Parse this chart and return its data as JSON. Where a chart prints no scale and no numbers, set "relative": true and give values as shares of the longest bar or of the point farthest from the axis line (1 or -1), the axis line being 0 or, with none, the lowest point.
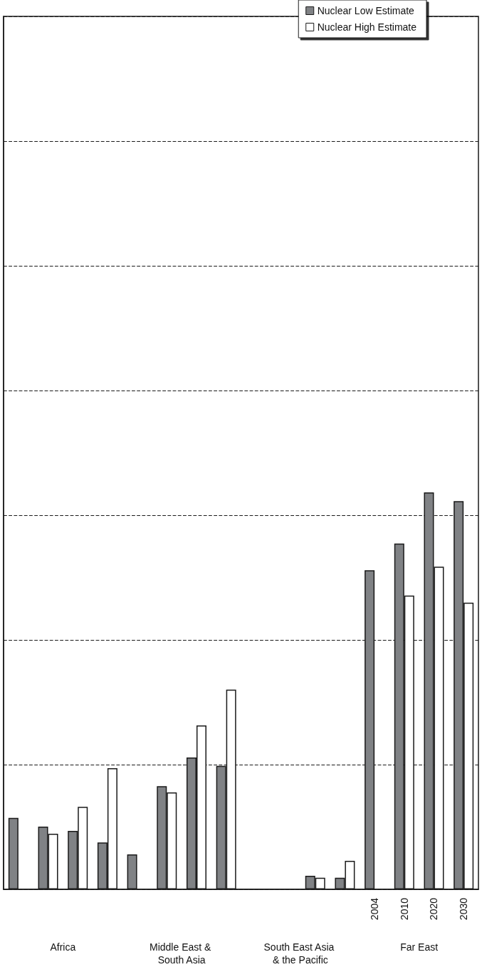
{
  "chart_data": {
    "type": "bar",
    "relative": true,
    "grid": "y",
    "line_style": "dashed",
    "legend": "top right",
    "categories": [
      null,
      null,
      null,
      null,
      null,
      null,
      null,
      null,
      null,
      null,
      null,
      null,
      "2004",
      "2010",
      "2020",
      "2030"
    ],
    "series": [
      {
        "name": "Nuclear Low Estimate",
        "color": "#808285",
        "values": [
          0.18,
          0.158,
          0.147,
          0.118,
          0.088,
          0.26,
          0.332,
          0.311,
          null,
          null,
          0.034,
          0.029,
          0.804,
          0.871,
          1,
          0.978
        ]
      },
      {
        "name": "Nuclear High Estimate",
        "color": "#ffffff",
        "values": [
          null,
          0.14,
          0.208,
          0.305,
          null,
          0.244,
          0.413,
          0.503,
          null,
          null,
          0.029,
          0.072,
          null,
          0.74,
          0.813,
          0.722
        ]
      }
    ],
    "annotations": [
      "Africa",
      "Middle East & South Asia",
      "South East Asia & the Pacific",
      "Far East"
    ]
  }
}
